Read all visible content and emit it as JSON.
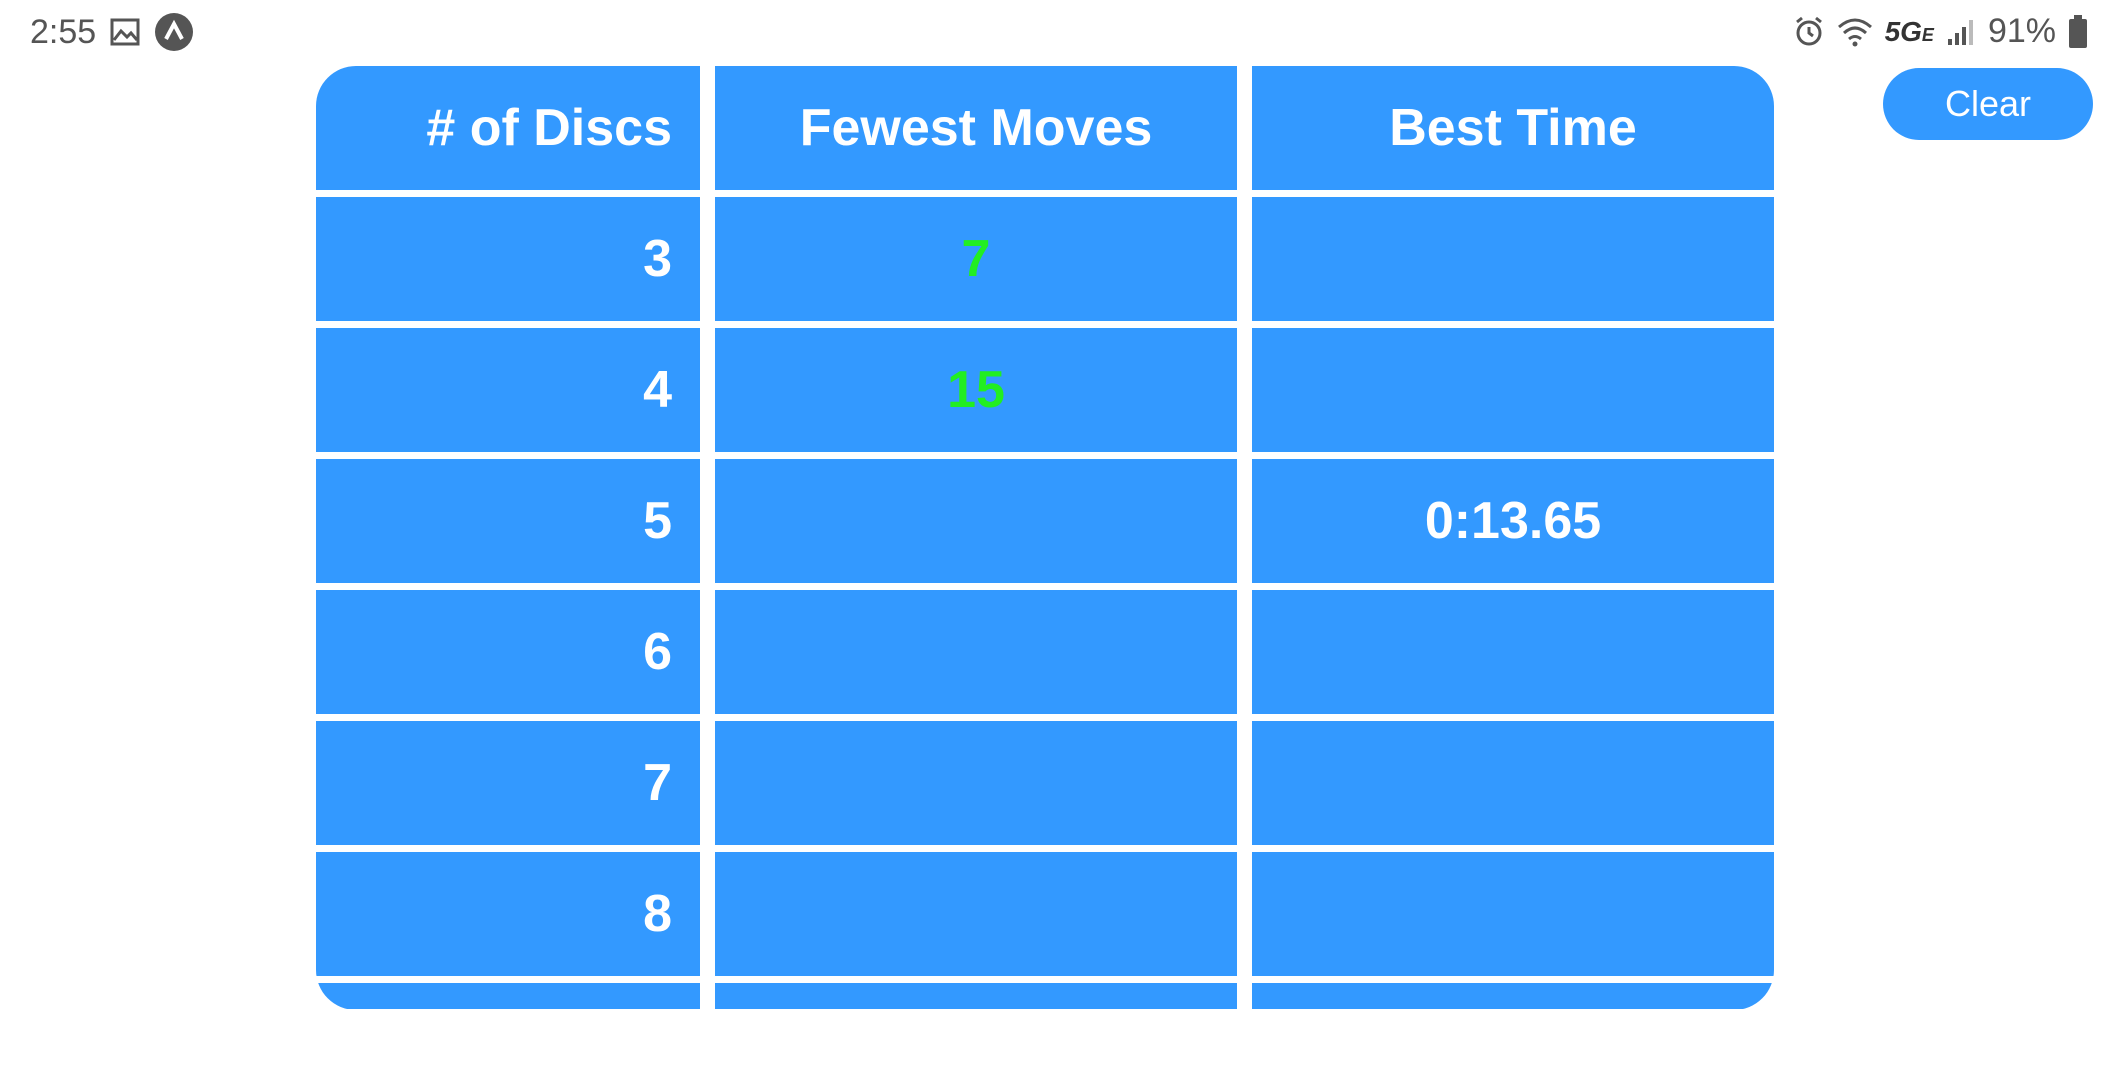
{
  "status_bar": {
    "time": "2:55",
    "network": "5G",
    "network_suffix": "E",
    "battery": "91%"
  },
  "clear_button": {
    "label": "Clear"
  },
  "table": {
    "headers": [
      "# of Discs",
      "Fewest Moves",
      "Best Time"
    ],
    "rows": [
      {
        "discs": "3",
        "fewest_moves": "7",
        "best_time": ""
      },
      {
        "discs": "4",
        "fewest_moves": "15",
        "best_time": ""
      },
      {
        "discs": "5",
        "fewest_moves": "",
        "best_time": "0:13.65"
      },
      {
        "discs": "6",
        "fewest_moves": "",
        "best_time": ""
      },
      {
        "discs": "7",
        "fewest_moves": "",
        "best_time": ""
      },
      {
        "discs": "8",
        "fewest_moves": "",
        "best_time": ""
      }
    ]
  },
  "colors": {
    "cell_background": "#3399ff",
    "moves_text": "#22ee22",
    "text": "#ffffff"
  },
  "icons": [
    "image-icon",
    "app-notification-icon",
    "alarm-icon",
    "wifi-icon",
    "signal-icon",
    "battery-icon"
  ]
}
